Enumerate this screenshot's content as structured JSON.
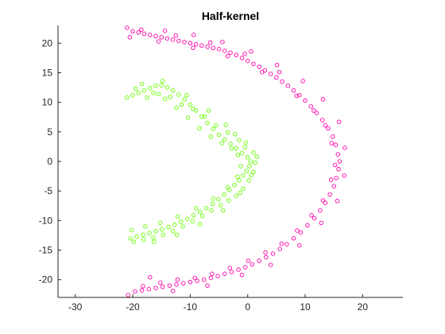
{
  "chart_data": {
    "type": "scatter",
    "title": "Half-kernel",
    "xlabel": "",
    "ylabel": "",
    "xlim": [
      -33,
      27
    ],
    "ylim": [
      -23,
      23
    ],
    "xticks": [
      -30,
      -20,
      -10,
      0,
      10,
      20
    ],
    "yticks": [
      -20,
      -15,
      -10,
      -5,
      0,
      5,
      10,
      15,
      20
    ],
    "grid": false,
    "legend": "none",
    "marker": "open-circle",
    "series": [
      {
        "color": "#ff00aa",
        "points": [
          [
            -21,
            22.6
          ],
          [
            -20,
            22
          ],
          [
            -19,
            21.8
          ],
          [
            -18,
            21.6
          ],
          [
            -17,
            21.4
          ],
          [
            -16,
            21.2
          ],
          [
            -15,
            21
          ],
          [
            -14,
            20.8
          ],
          [
            -13,
            20.6
          ],
          [
            -12,
            20.4
          ],
          [
            -11,
            20.2
          ],
          [
            -10,
            20
          ],
          [
            -9,
            19.8
          ],
          [
            -8,
            19.6
          ],
          [
            -7,
            19.4
          ],
          [
            -6,
            19.2
          ],
          [
            -5,
            19
          ],
          [
            -4,
            18.7
          ],
          [
            -3,
            18.4
          ],
          [
            -2,
            18
          ],
          [
            -1,
            17.5
          ],
          [
            0,
            17
          ],
          [
            1,
            16.5
          ],
          [
            2,
            16
          ],
          [
            3,
            15.4
          ],
          [
            4,
            14.8
          ],
          [
            5,
            14.2
          ],
          [
            6,
            13.5
          ],
          [
            7,
            12.8
          ],
          [
            8,
            12
          ],
          [
            9,
            11.2
          ],
          [
            10,
            10.3
          ],
          [
            11,
            9.3
          ],
          [
            12,
            8.2
          ],
          [
            13,
            7
          ],
          [
            14,
            5.6
          ],
          [
            14.8,
            4.2
          ],
          [
            15.3,
            2.8
          ],
          [
            15.7,
            1.2
          ],
          [
            16,
            0
          ],
          [
            15.8,
            -1.3
          ],
          [
            15.4,
            -2.8
          ],
          [
            15,
            -4.2
          ],
          [
            14.3,
            -5.6
          ],
          [
            13.5,
            -7
          ],
          [
            12.6,
            -8.3
          ],
          [
            11.6,
            -9.6
          ],
          [
            10.4,
            -10.8
          ],
          [
            9.2,
            -12
          ],
          [
            8,
            -13
          ],
          [
            6.8,
            -14
          ],
          [
            5.6,
            -14.8
          ],
          [
            4.4,
            -15.6
          ],
          [
            3.2,
            -16.2
          ],
          [
            2,
            -16.8
          ],
          [
            0.8,
            -17.4
          ],
          [
            -0.4,
            -17.9
          ],
          [
            -1.6,
            -18.3
          ],
          [
            -2.8,
            -18.7
          ],
          [
            -4,
            -19
          ],
          [
            -5.2,
            -19.4
          ],
          [
            -6.4,
            -19.7
          ],
          [
            -7.6,
            -20
          ],
          [
            -8.8,
            -20.2
          ],
          [
            -10,
            -20.4
          ],
          [
            -11.2,
            -20.6
          ],
          [
            -12.4,
            -20.8
          ],
          [
            -13.6,
            -21
          ],
          [
            -14.8,
            -21.2
          ],
          [
            -16,
            -21.4
          ],
          [
            -17.2,
            -21.6
          ],
          [
            -18.4,
            -21.8
          ],
          [
            -19.6,
            -22
          ],
          [
            -20.8,
            -22.6
          ],
          [
            -20.5,
            21
          ],
          [
            -18.5,
            22.3
          ],
          [
            -15.5,
            20.3
          ],
          [
            -12.5,
            21.3
          ],
          [
            -9.5,
            19.2
          ],
          [
            -6.5,
            20.1
          ],
          [
            -3.5,
            17.8
          ],
          [
            -0.5,
            18.2
          ],
          [
            2.5,
            15.1
          ],
          [
            5.5,
            15.1
          ],
          [
            8.5,
            11.1
          ],
          [
            11.5,
            8.6
          ],
          [
            13.5,
            6.1
          ],
          [
            14.6,
            3.1
          ],
          [
            15.2,
            -0.6
          ],
          [
            14.5,
            -3.1
          ],
          [
            13.1,
            -6.6
          ],
          [
            11.1,
            -9.1
          ],
          [
            8.6,
            -11.7
          ],
          [
            5.9,
            -13.9
          ],
          [
            3.1,
            -15.4
          ],
          [
            0.1,
            -16.8
          ],
          [
            -3.1,
            -18
          ],
          [
            -6.2,
            -19
          ],
          [
            -9.2,
            -19.7
          ],
          [
            -12.2,
            -20
          ],
          [
            -15.2,
            -20.5
          ],
          [
            -18.2,
            -21.1
          ],
          [
            -17,
            -19.6
          ],
          [
            -13,
            -21.9
          ],
          [
            -7,
            -21
          ],
          [
            -1,
            -19.2
          ],
          [
            4,
            -17.5
          ],
          [
            9,
            -14.2
          ],
          [
            12.8,
            -10.4
          ],
          [
            15.6,
            -6.7
          ],
          [
            16.8,
            -2.4
          ],
          [
            16.9,
            2.3
          ],
          [
            15.9,
            6.7
          ],
          [
            13.1,
            10.5
          ],
          [
            9.6,
            13.6
          ],
          [
            5.1,
            16.3
          ],
          [
            0.6,
            18.6
          ],
          [
            -4.4,
            20.2
          ],
          [
            -9.4,
            21.4
          ],
          [
            -14.4,
            22.1
          ]
        ]
      },
      {
        "color": "#66ff00",
        "points": [
          [
            -21,
            10.8
          ],
          [
            -20,
            11.2
          ],
          [
            -19,
            11.6
          ],
          [
            -18,
            12
          ],
          [
            -17,
            12.4
          ],
          [
            -16,
            12.8
          ],
          [
            -15,
            12.9
          ],
          [
            -14,
            12.5
          ],
          [
            -13,
            12
          ],
          [
            -12,
            11.3
          ],
          [
            -11,
            10.5
          ],
          [
            -10,
            9.6
          ],
          [
            -9,
            8.6
          ],
          [
            -8,
            7.6
          ],
          [
            -7,
            6.5
          ],
          [
            -6,
            5.5
          ],
          [
            -5,
            4.5
          ],
          [
            -4,
            3.7
          ],
          [
            -3,
            3
          ],
          [
            -2,
            2.2
          ],
          [
            -1,
            1.4
          ],
          [
            0,
            0.7
          ],
          [
            0.5,
            0
          ],
          [
            0.3,
            -0.8
          ],
          [
            -0.2,
            -1.6
          ],
          [
            -0.8,
            -2.4
          ],
          [
            -1.5,
            -3.2
          ],
          [
            -2.3,
            -4
          ],
          [
            -3.2,
            -4.8
          ],
          [
            -4.1,
            -5.6
          ],
          [
            -5.1,
            -6.4
          ],
          [
            -6.1,
            -7.2
          ],
          [
            -7.2,
            -7.9
          ],
          [
            -8.3,
            -8.5
          ],
          [
            -9.4,
            -9.1
          ],
          [
            -10.5,
            -9.7
          ],
          [
            -11.6,
            -10.2
          ],
          [
            -12.7,
            -10.7
          ],
          [
            -13.8,
            -11.1
          ],
          [
            -14.9,
            -11.5
          ],
          [
            -16,
            -11.8
          ],
          [
            -17.1,
            -12.1
          ],
          [
            -18.2,
            -12.4
          ],
          [
            -19.3,
            -12.7
          ],
          [
            -20.4,
            -13
          ],
          [
            -19.5,
            12.3
          ],
          [
            -17.5,
            10.8
          ],
          [
            -15.5,
            11.4
          ],
          [
            -13.5,
            10.9
          ],
          [
            -11.5,
            9.6
          ],
          [
            -9.5,
            8.9
          ],
          [
            -7.5,
            7.6
          ],
          [
            -5.5,
            6.1
          ],
          [
            -3.5,
            4.9
          ],
          [
            -1.5,
            3.6
          ],
          [
            -0.5,
            2.4
          ],
          [
            1,
            1.5
          ],
          [
            1.3,
            -0.2
          ],
          [
            1,
            -1.8
          ],
          [
            0.2,
            -3.2
          ],
          [
            -0.8,
            -4.6
          ],
          [
            -2,
            -5.8
          ],
          [
            -3.3,
            -6.6
          ],
          [
            -4.7,
            -7.4
          ],
          [
            -6.3,
            -8.3
          ],
          [
            -7.9,
            -9.2
          ],
          [
            -9.6,
            -10.1
          ],
          [
            -11.3,
            -11
          ],
          [
            -13,
            -11.8
          ],
          [
            -14.7,
            -12.4
          ],
          [
            -16.4,
            -12.9
          ],
          [
            -18.1,
            -13.2
          ],
          [
            -19.8,
            -13.6
          ],
          [
            -17.8,
            -11
          ],
          [
            -15.2,
            -10.4
          ],
          [
            -12.2,
            -9.3
          ],
          [
            -9,
            -7.9
          ],
          [
            -6,
            -6.3
          ],
          [
            -3.5,
            -4.4
          ],
          [
            -1.8,
            -2.6
          ],
          [
            -1.2,
            -0.8
          ],
          [
            -1.7,
            1.1
          ],
          [
            -2.8,
            2.2
          ],
          [
            -4.5,
            3.1
          ],
          [
            -6.4,
            4.2
          ],
          [
            -8.4,
            5.6
          ],
          [
            -10.4,
            7.4
          ],
          [
            -12.4,
            9.1
          ],
          [
            -14.4,
            10.6
          ],
          [
            -16.4,
            11.6
          ],
          [
            -18.4,
            13.1
          ],
          [
            -14.8,
            13.6
          ],
          [
            -10.6,
            11.2
          ],
          [
            -6.8,
            8.6
          ],
          [
            -3.8,
            6.2
          ],
          [
            -2.2,
            4.6
          ],
          [
            -0.3,
            3.2
          ],
          [
            1.6,
            0.8
          ],
          [
            0.6,
            -2.3
          ],
          [
            -1.3,
            -5.3
          ],
          [
            -4.3,
            -8.3
          ],
          [
            -8.3,
            -10.6
          ],
          [
            -12.3,
            -12.4
          ],
          [
            -16.3,
            -13.6
          ],
          [
            -20.2,
            -11.6
          ]
        ]
      }
    ]
  }
}
